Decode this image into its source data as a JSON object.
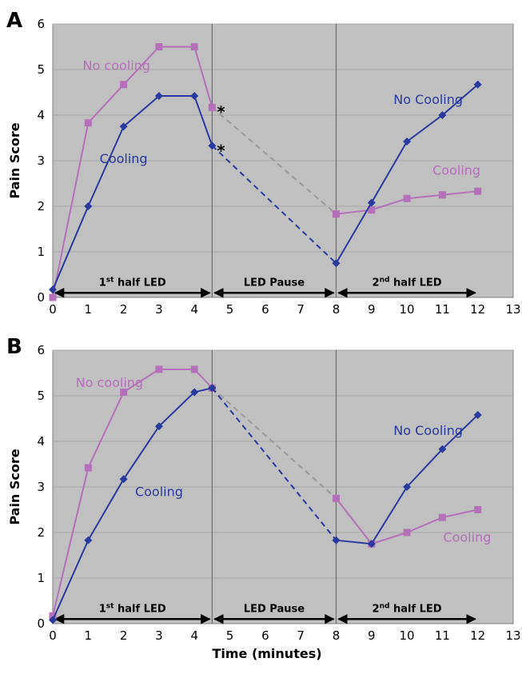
{
  "colors": {
    "plot_bg": "#c0c0c0",
    "grid": "#a8a8a8",
    "cooling": "#2a3a9c",
    "no_cooling": "#b470b8",
    "dashed_cooling": "#2a3a9c",
    "dashed_no_cooling": "#9a9a9a"
  },
  "shared": {
    "ylabel": "Pain Score",
    "xlabel": "Time (minutes)",
    "x_ticks": [
      "0",
      "1",
      "2",
      "3",
      "4",
      "5",
      "6",
      "7",
      "8",
      "9",
      "10",
      "11",
      "12",
      "13"
    ],
    "y_ticks": [
      "0",
      "1",
      "2",
      "3",
      "4",
      "5",
      "6"
    ]
  },
  "chart_data": [
    {
      "panel": "A",
      "type": "line",
      "xlabel": "",
      "ylabel": "Pain Score",
      "xlim": [
        0,
        13
      ],
      "ylim": [
        0,
        6
      ],
      "grid": true,
      "series": [
        {
          "name": "No cooling",
          "marker": "square",
          "x": [
            0,
            1,
            2,
            3,
            4,
            4.5,
            8,
            9,
            10,
            11,
            12
          ],
          "y": [
            0.0,
            3.83,
            4.67,
            5.5,
            5.5,
            4.17,
            1.83,
            1.92,
            2.17,
            2.25,
            2.33
          ],
          "dashed_segment": [
            4.5,
            8
          ]
        },
        {
          "name": "Cooling",
          "marker": "diamond",
          "x": [
            0,
            1,
            2,
            3,
            4,
            4.5,
            8,
            9,
            10,
            11,
            12
          ],
          "y": [
            0.17,
            2.0,
            3.75,
            4.42,
            4.42,
            3.33,
            0.75,
            2.08,
            3.42,
            4.0,
            4.67
          ],
          "dashed_segment": [
            4.5,
            8
          ]
        }
      ],
      "annotations": [
        {
          "text": "No cooling",
          "x": 1.8,
          "y": 5.1,
          "series": "no_cooling"
        },
        {
          "text": "Cooling",
          "x": 2.0,
          "y": 3.05,
          "series": "cooling"
        },
        {
          "text": "No Cooling",
          "x": 10.6,
          "y": 4.35,
          "series": "cooling"
        },
        {
          "text": "Cooling",
          "x": 11.4,
          "y": 2.8,
          "series": "no_cooling"
        },
        {
          "text": "*",
          "x": 4.75,
          "y": 4.05,
          "series": "sig"
        },
        {
          "text": "*",
          "x": 4.75,
          "y": 3.2,
          "series": "sig"
        }
      ],
      "phases": [
        {
          "label_main": "1",
          "label_sup": "st",
          "label_rest": " half LED",
          "x0": 0,
          "x1": 4.5
        },
        {
          "label_main": "LED Pause",
          "label_sup": "",
          "label_rest": "",
          "x0": 4.5,
          "x1": 8
        },
        {
          "label_main": "2",
          "label_sup": "nd",
          "label_rest": " half LED",
          "x0": 8,
          "x1": 12
        }
      ],
      "phase_dividers": [
        4.5,
        8
      ]
    },
    {
      "panel": "B",
      "type": "line",
      "xlabel": "Time (minutes)",
      "ylabel": "Pain Score",
      "xlim": [
        0,
        13
      ],
      "ylim": [
        0,
        6
      ],
      "grid": true,
      "series": [
        {
          "name": "No cooling",
          "marker": "square",
          "x": [
            0,
            1,
            2,
            3,
            4,
            4.5,
            8,
            9,
            10,
            11,
            12
          ],
          "y": [
            0.17,
            3.42,
            5.08,
            5.58,
            5.58,
            5.17,
            2.75,
            1.75,
            2.0,
            2.33,
            2.5
          ],
          "dashed_segment": [
            4.5,
            8
          ]
        },
        {
          "name": "Cooling",
          "marker": "diamond",
          "x": [
            0,
            1,
            2,
            3,
            4,
            4.5,
            8,
            9,
            10,
            11,
            12
          ],
          "y": [
            0.08,
            1.83,
            3.17,
            4.33,
            5.08,
            5.17,
            1.83,
            1.75,
            3.0,
            3.83,
            4.58
          ],
          "dashed_segment": [
            4.5,
            8
          ]
        }
      ],
      "annotations": [
        {
          "text": "No cooling",
          "x": 1.6,
          "y": 5.3,
          "series": "no_cooling"
        },
        {
          "text": "Cooling",
          "x": 3.0,
          "y": 2.9,
          "series": "cooling"
        },
        {
          "text": "No Cooling",
          "x": 10.6,
          "y": 4.25,
          "series": "cooling"
        },
        {
          "text": "Cooling",
          "x": 11.7,
          "y": 1.9,
          "series": "no_cooling"
        }
      ],
      "phases": [
        {
          "label_main": "1",
          "label_sup": "st",
          "label_rest": " half LED",
          "x0": 0,
          "x1": 4.5
        },
        {
          "label_main": "LED Pause",
          "label_sup": "",
          "label_rest": "",
          "x0": 4.5,
          "x1": 8
        },
        {
          "label_main": "2",
          "label_sup": "nd",
          "label_rest": " half LED",
          "x0": 8,
          "x1": 12
        }
      ],
      "phase_dividers": [
        4.5,
        8
      ]
    }
  ]
}
